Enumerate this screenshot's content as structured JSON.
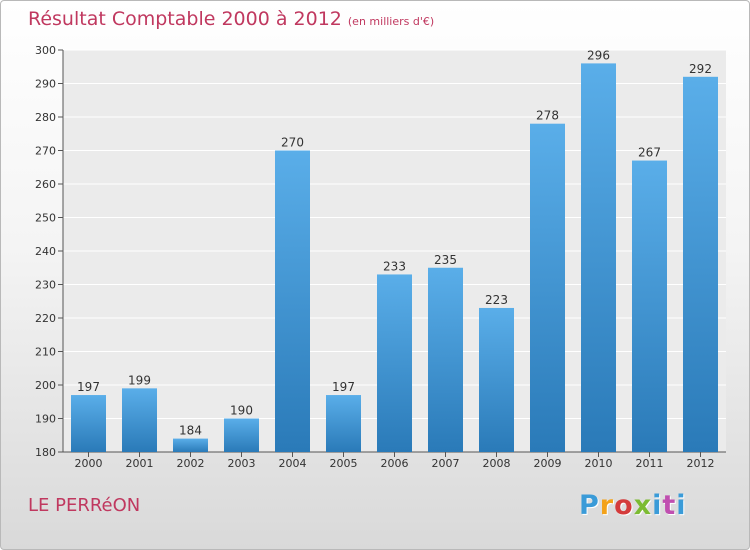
{
  "title": "Résultat Comptable 2000 à 2012",
  "subtitle": "(en milliers d'€)",
  "city_label": "LE PERRéON",
  "logo": {
    "letters": [
      "P",
      "r",
      "o",
      "x",
      "i",
      "t",
      "i"
    ]
  },
  "colors": {
    "title": "#c0385f",
    "bar_top": "#5aaee9",
    "bar_bottom": "#2a7ab8",
    "plot_bg": "#ebebeb"
  },
  "chart_data": {
    "type": "bar",
    "title": "Résultat Comptable 2000 à 2012",
    "subtitle": "(en milliers d'€)",
    "categories": [
      "2000",
      "2001",
      "2002",
      "2003",
      "2004",
      "2005",
      "2006",
      "2007",
      "2008",
      "2009",
      "2010",
      "2011",
      "2012"
    ],
    "values": [
      197,
      199,
      184,
      190,
      270,
      197,
      233,
      235,
      223,
      278,
      296,
      267,
      292
    ],
    "ylim": [
      180,
      300
    ],
    "yticks": [
      180,
      190,
      200,
      210,
      220,
      230,
      240,
      250,
      260,
      270,
      280,
      290,
      300
    ],
    "xlabel": "",
    "ylabel": "",
    "grid": true
  }
}
